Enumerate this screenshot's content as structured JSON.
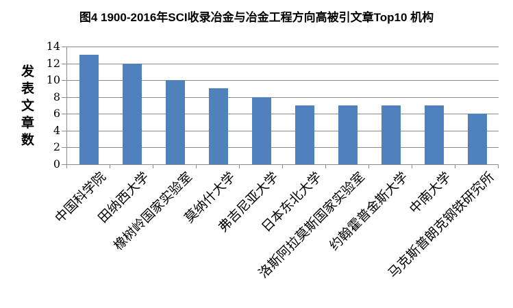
{
  "chart_data": {
    "type": "bar",
    "title": "图4 1900-2016年SCI收录冶金与冶金工程方向高被引文章Top10 机构",
    "ylabel": "发表文章数",
    "xlabel": "",
    "categories": [
      "中国科学院",
      "田纳西大学",
      "橡树岭国家实验室",
      "莫纳什大学",
      "弗吉尼亚大学",
      "日本东北大学",
      "洛斯阿拉莫斯国家实验室",
      "约翰霍普金斯大学",
      "中南大学",
      "马克斯普朗克钢铁研究所"
    ],
    "values": [
      13,
      12,
      10,
      9,
      8,
      7,
      7,
      7,
      7,
      6
    ],
    "ylim": [
      0,
      14
    ],
    "yticks": [
      0,
      2,
      4,
      6,
      8,
      10,
      12,
      14
    ],
    "grid": true,
    "legend_position": "none",
    "bar_color": "#4F81BD",
    "gridline_color": "#8a8a8a",
    "axis_color": "#8a8a8a",
    "text_color": "#000000"
  }
}
